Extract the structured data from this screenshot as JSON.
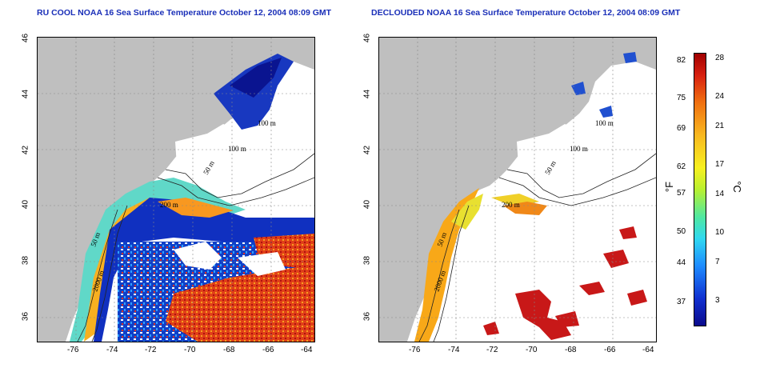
{
  "titles": {
    "left": "RU COOL NOAA 16 Sea Surface Temperature October 12, 2004 08:09 GMT",
    "right": "DECLOUDED NOAA 16 Sea Surface Temperature October 12, 2004 08:09 GMT"
  },
  "axes": {
    "x_ticks": [
      "-76",
      "-74",
      "-72",
      "-70",
      "-68",
      "-66",
      "-64"
    ],
    "y_ticks": [
      "46",
      "44",
      "42",
      "40",
      "38",
      "36"
    ]
  },
  "contour_labels": {
    "left": [
      "100 m",
      "100 m",
      "50 m",
      "200 m",
      "50 m",
      "2000 m"
    ],
    "right": [
      "100 m",
      "100 m",
      "50 m",
      "200 m",
      "50 m",
      "2000 m"
    ]
  },
  "colorbar": {
    "fahrenheit_ticks": [
      "82",
      "75",
      "69",
      "62",
      "57",
      "50",
      "44",
      "37"
    ],
    "celsius_ticks": [
      "28",
      "24",
      "21",
      "17",
      "14",
      "10",
      "7",
      "3"
    ],
    "fahrenheit_unit": "°F",
    "celsius_unit": "°C"
  },
  "colors": {
    "land": "#bfbfbf",
    "title": "#1a2fb8",
    "cold": "#0a0a8c",
    "warm": "#a00000"
  }
}
